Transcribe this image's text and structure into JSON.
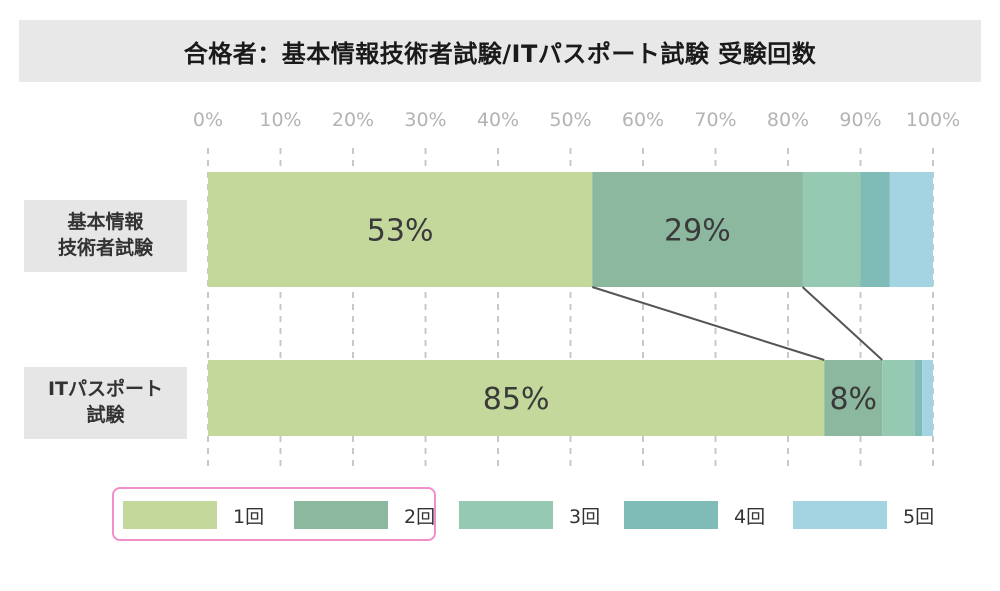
{
  "chart_data": {
    "type": "bar",
    "orientation": "horizontal",
    "stacked": true,
    "title": "合格者：基本情報技術者試験/ITパスポート試験 受験回数",
    "categories": [
      "基本情報\n技術者試験",
      "ITパスポート\n試験"
    ],
    "series": [
      {
        "name": "1回",
        "values": [
          53,
          85
        ],
        "color": "#c5d89c"
      },
      {
        "name": "2回",
        "values": [
          29,
          8
        ],
        "color": "#8db8a0"
      },
      {
        "name": "3回",
        "values": [
          8,
          4.5
        ],
        "color": "#95c9b1"
      },
      {
        "name": "4回",
        "values": [
          4,
          1
        ],
        "color": "#7fbcb8"
      },
      {
        "name": "5回",
        "values": [
          6,
          1.5
        ],
        "color": "#a4d4e1"
      }
    ],
    "data_labels": [
      {
        "category": 0,
        "series": 0,
        "text": "53%"
      },
      {
        "category": 0,
        "series": 1,
        "text": "29%"
      },
      {
        "category": 1,
        "series": 0,
        "text": "85%"
      },
      {
        "category": 1,
        "series": 1,
        "text": "8%"
      }
    ],
    "x_ticks": [
      "0%",
      "10%",
      "20%",
      "30%",
      "40%",
      "50%",
      "60%",
      "70%",
      "80%",
      "90%",
      "100%"
    ],
    "xlim": [
      0,
      100
    ],
    "grid": true,
    "legend_position": "bottom",
    "legend_highlight": [
      "1回",
      "2回"
    ]
  }
}
